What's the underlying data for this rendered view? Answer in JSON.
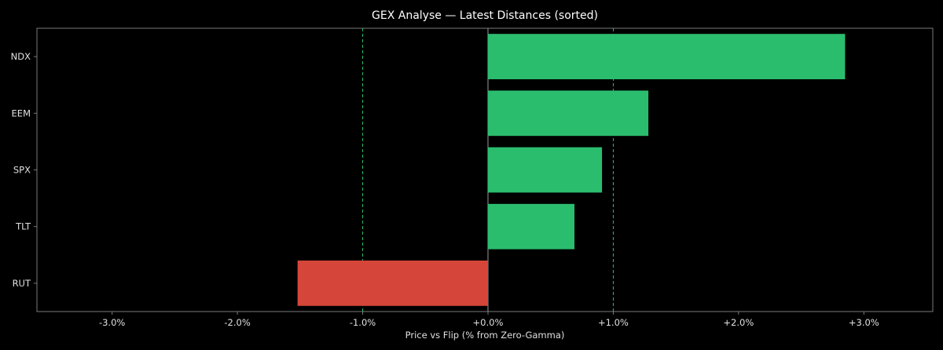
{
  "chart_data": {
    "type": "bar",
    "orientation": "horizontal",
    "title": "GEX Analyse — Latest Distances (sorted)",
    "xlabel": "Price vs Flip (% from Zero-Gamma)",
    "ylabel": "",
    "categories": [
      "NDX",
      "EEM",
      "SPX",
      "TLT",
      "RUT"
    ],
    "values": [
      2.85,
      1.28,
      0.91,
      0.69,
      -1.52
    ],
    "xlim": [
      -3.6,
      3.55
    ],
    "xticks": [
      -3,
      -2,
      -1,
      0,
      1,
      2,
      3
    ],
    "xtick_labels": [
      "-3.0%",
      "-2.0%",
      "-1.0%",
      "+0.0%",
      "+1.0%",
      "+2.0%",
      "+3.0%"
    ],
    "reference_lines": [
      -1,
      1
    ],
    "grid": false,
    "colors": {
      "background": "#000000",
      "positive": "#2bbd6e",
      "negative": "#d64539",
      "reference_line": "#2bbd6e",
      "zero_line": "#9a9a9a",
      "frame": "#7a7a7a",
      "text": "#e0e0e0"
    }
  }
}
